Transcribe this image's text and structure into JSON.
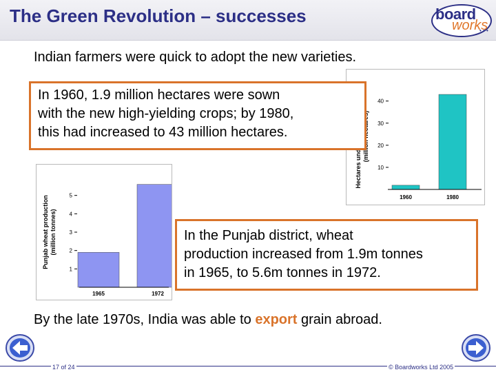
{
  "slide": {
    "title": "The Green Revolution – successes",
    "intro": "Indian farmers were quick to adopt the new varieties.",
    "box1_lines": [
      "In 1960, 1.9 million hectares were sown",
      "with the new high-yielding crops; by 1980,",
      "this had increased to 43 million hectares."
    ],
    "box2_lines": [
      "In the Punjab district, wheat",
      "production increased from 1.9m tonnes",
      "in 1965, to 5.6m tonnes in 1972."
    ],
    "closing_before": "By the late 1970s, India was able to ",
    "closing_highlight": "export",
    "closing_after": " grain abroad."
  },
  "logo": {
    "word1": "board",
    "word2": "works"
  },
  "footer": {
    "page": "17 of 24",
    "copyright": "© Boardworks Ltd 2005"
  },
  "nav": {
    "prev_icon": "arrow-left-icon",
    "next_icon": "arrow-right-icon"
  },
  "colors": {
    "title": "#2c2f86",
    "accent": "#d9732a",
    "hectares_bar": "#1fc4c4",
    "wheat_bar": "#8e95f2"
  },
  "chart_data": [
    {
      "type": "bar",
      "categories": [
        "1960",
        "1980"
      ],
      "values": [
        1.9,
        43
      ],
      "ylabel": "Hectares under high-yielding crops (million hectares)",
      "yticks": [
        10,
        20,
        30,
        40
      ],
      "ylim": [
        0,
        48
      ]
    },
    {
      "type": "bar",
      "categories": [
        "1965",
        "1972"
      ],
      "values": [
        1.9,
        5.6
      ],
      "ylabel": "Punjab wheat production (million tonnes)",
      "yticks": [
        1,
        2,
        3,
        4,
        5
      ],
      "ylim": [
        0,
        6.0
      ]
    }
  ]
}
